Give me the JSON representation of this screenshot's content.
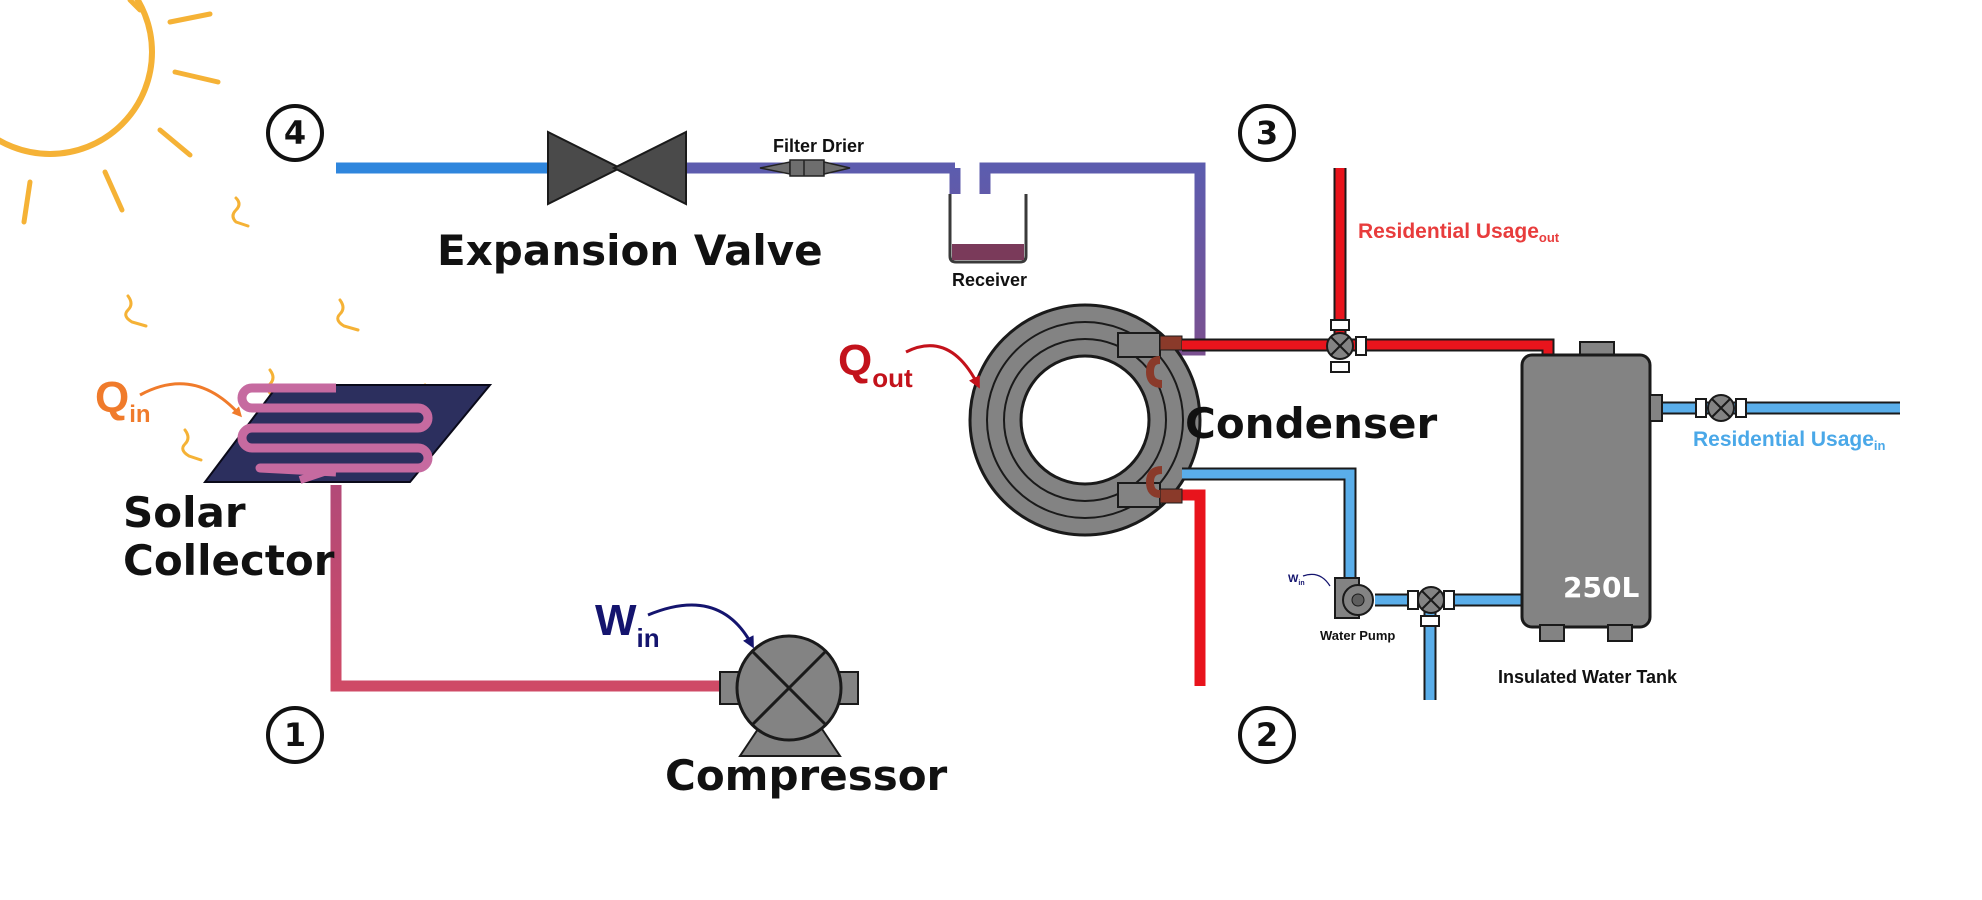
{
  "state_points": [
    "1",
    "2",
    "3",
    "4"
  ],
  "labels": {
    "expansion_valve": "Expansion Valve",
    "filter_drier": "Filter Drier",
    "receiver": "Receiver",
    "condenser": "Condenser",
    "solar_collector_line1": "Solar",
    "solar_collector_line2": "Collector",
    "compressor": "Compressor",
    "water_pump": "Water Pump",
    "insulated_water_tank": "Insulated Water Tank",
    "tank_capacity": "250L",
    "residential_usage_out_main": "Residential Usage",
    "residential_usage_out_sub": "out",
    "residential_usage_in_main": "Residential Usage",
    "residential_usage_in_sub": "in"
  },
  "symbols": {
    "q_in_main": "Q",
    "q_in_sub": "in",
    "q_out_main": "Q",
    "q_out_sub": "out",
    "w_in_main": "W",
    "w_in_sub": "in",
    "pump_w_main": "W",
    "pump_w_sub": "in"
  },
  "colors": {
    "hot_red": "#e8141c",
    "cold_blue": "#2f86dd",
    "water_blue": "#5aaeea",
    "mid_purple": "#6860ad",
    "q_in": "#f07b2b",
    "q_out": "#c3121b",
    "w_in": "#14146e",
    "residential_out": "#e83c3c",
    "residential_in": "#4aa8e8",
    "sun": "#f5b236",
    "equipment_gray": "#7a7a7a"
  }
}
